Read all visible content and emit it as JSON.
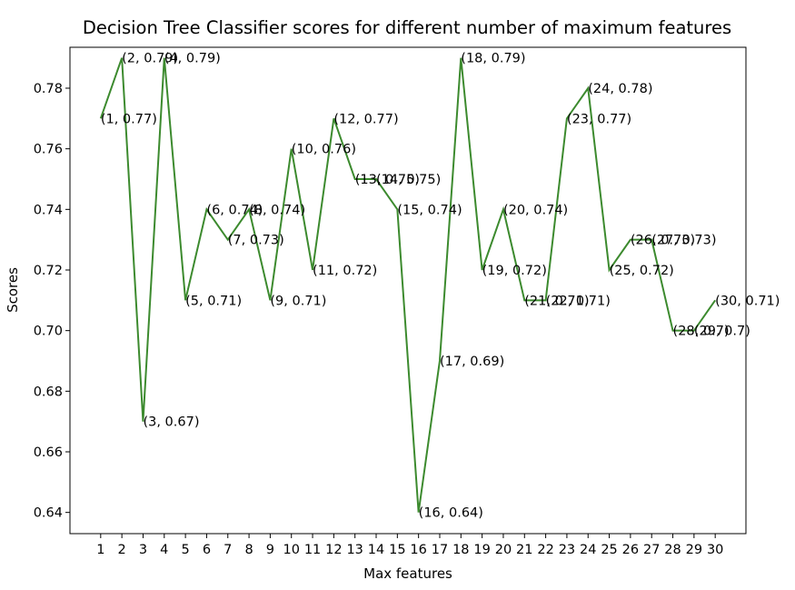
{
  "chart_data": {
    "type": "line",
    "title": "Decision Tree Classifier scores for different number of maximum features",
    "xlabel": "Max features",
    "ylabel": "Scores",
    "x": [
      1,
      2,
      3,
      4,
      5,
      6,
      7,
      8,
      9,
      10,
      11,
      12,
      13,
      14,
      15,
      16,
      17,
      18,
      19,
      20,
      21,
      22,
      23,
      24,
      25,
      26,
      27,
      28,
      29,
      30
    ],
    "y": [
      0.77,
      0.79,
      0.67,
      0.79,
      0.71,
      0.74,
      0.73,
      0.74,
      0.71,
      0.76,
      0.72,
      0.77,
      0.75,
      0.75,
      0.74,
      0.64,
      0.69,
      0.79,
      0.72,
      0.74,
      0.71,
      0.71,
      0.77,
      0.78,
      0.72,
      0.73,
      0.73,
      0.7,
      0.7,
      0.71
    ],
    "point_labels": [
      "(1, 0.77)",
      "(2, 0.79)",
      "(3, 0.67)",
      "(4, 0.79)",
      "(5, 0.71)",
      "(6, 0.74)",
      "(7, 0.73)",
      "(8, 0.74)",
      "(9, 0.71)",
      "(10, 0.76)",
      "(11, 0.72)",
      "(12, 0.77)",
      "(13, 0.75)",
      "(14, 0.75)",
      "(15, 0.74)",
      "(16, 0.64)",
      "(17, 0.69)",
      "(18, 0.79)",
      "(19, 0.72)",
      "(20, 0.74)",
      "(21, 0.71)",
      "(22, 0.71)",
      "(23, 0.77)",
      "(24, 0.78)",
      "(25, 0.72)",
      "(26, 0.73)",
      "(27, 0.73)",
      "(28, 0.7)",
      "(29, 0.7)",
      "(30, 0.71)"
    ],
    "xticks": [
      "1",
      "2",
      "3",
      "4",
      "5",
      "6",
      "7",
      "8",
      "9",
      "10",
      "11",
      "12",
      "13",
      "14",
      "15",
      "16",
      "17",
      "18",
      "19",
      "20",
      "21",
      "22",
      "23",
      "24",
      "25",
      "26",
      "27",
      "28",
      "29",
      "30"
    ],
    "yticks": [
      {
        "value": 0.64,
        "label": "0.64"
      },
      {
        "value": 0.66,
        "label": "0.66"
      },
      {
        "value": 0.68,
        "label": "0.68"
      },
      {
        "value": 0.7,
        "label": "0.70"
      },
      {
        "value": 0.72,
        "label": "0.72"
      },
      {
        "value": 0.74,
        "label": "0.74"
      },
      {
        "value": 0.76,
        "label": "0.76"
      },
      {
        "value": 0.78,
        "label": "0.78"
      }
    ],
    "xlim": [
      -0.45,
      31.45
    ],
    "ylim": [
      0.633,
      0.7935
    ],
    "grid": false,
    "line_color": "#3c8a2e"
  }
}
